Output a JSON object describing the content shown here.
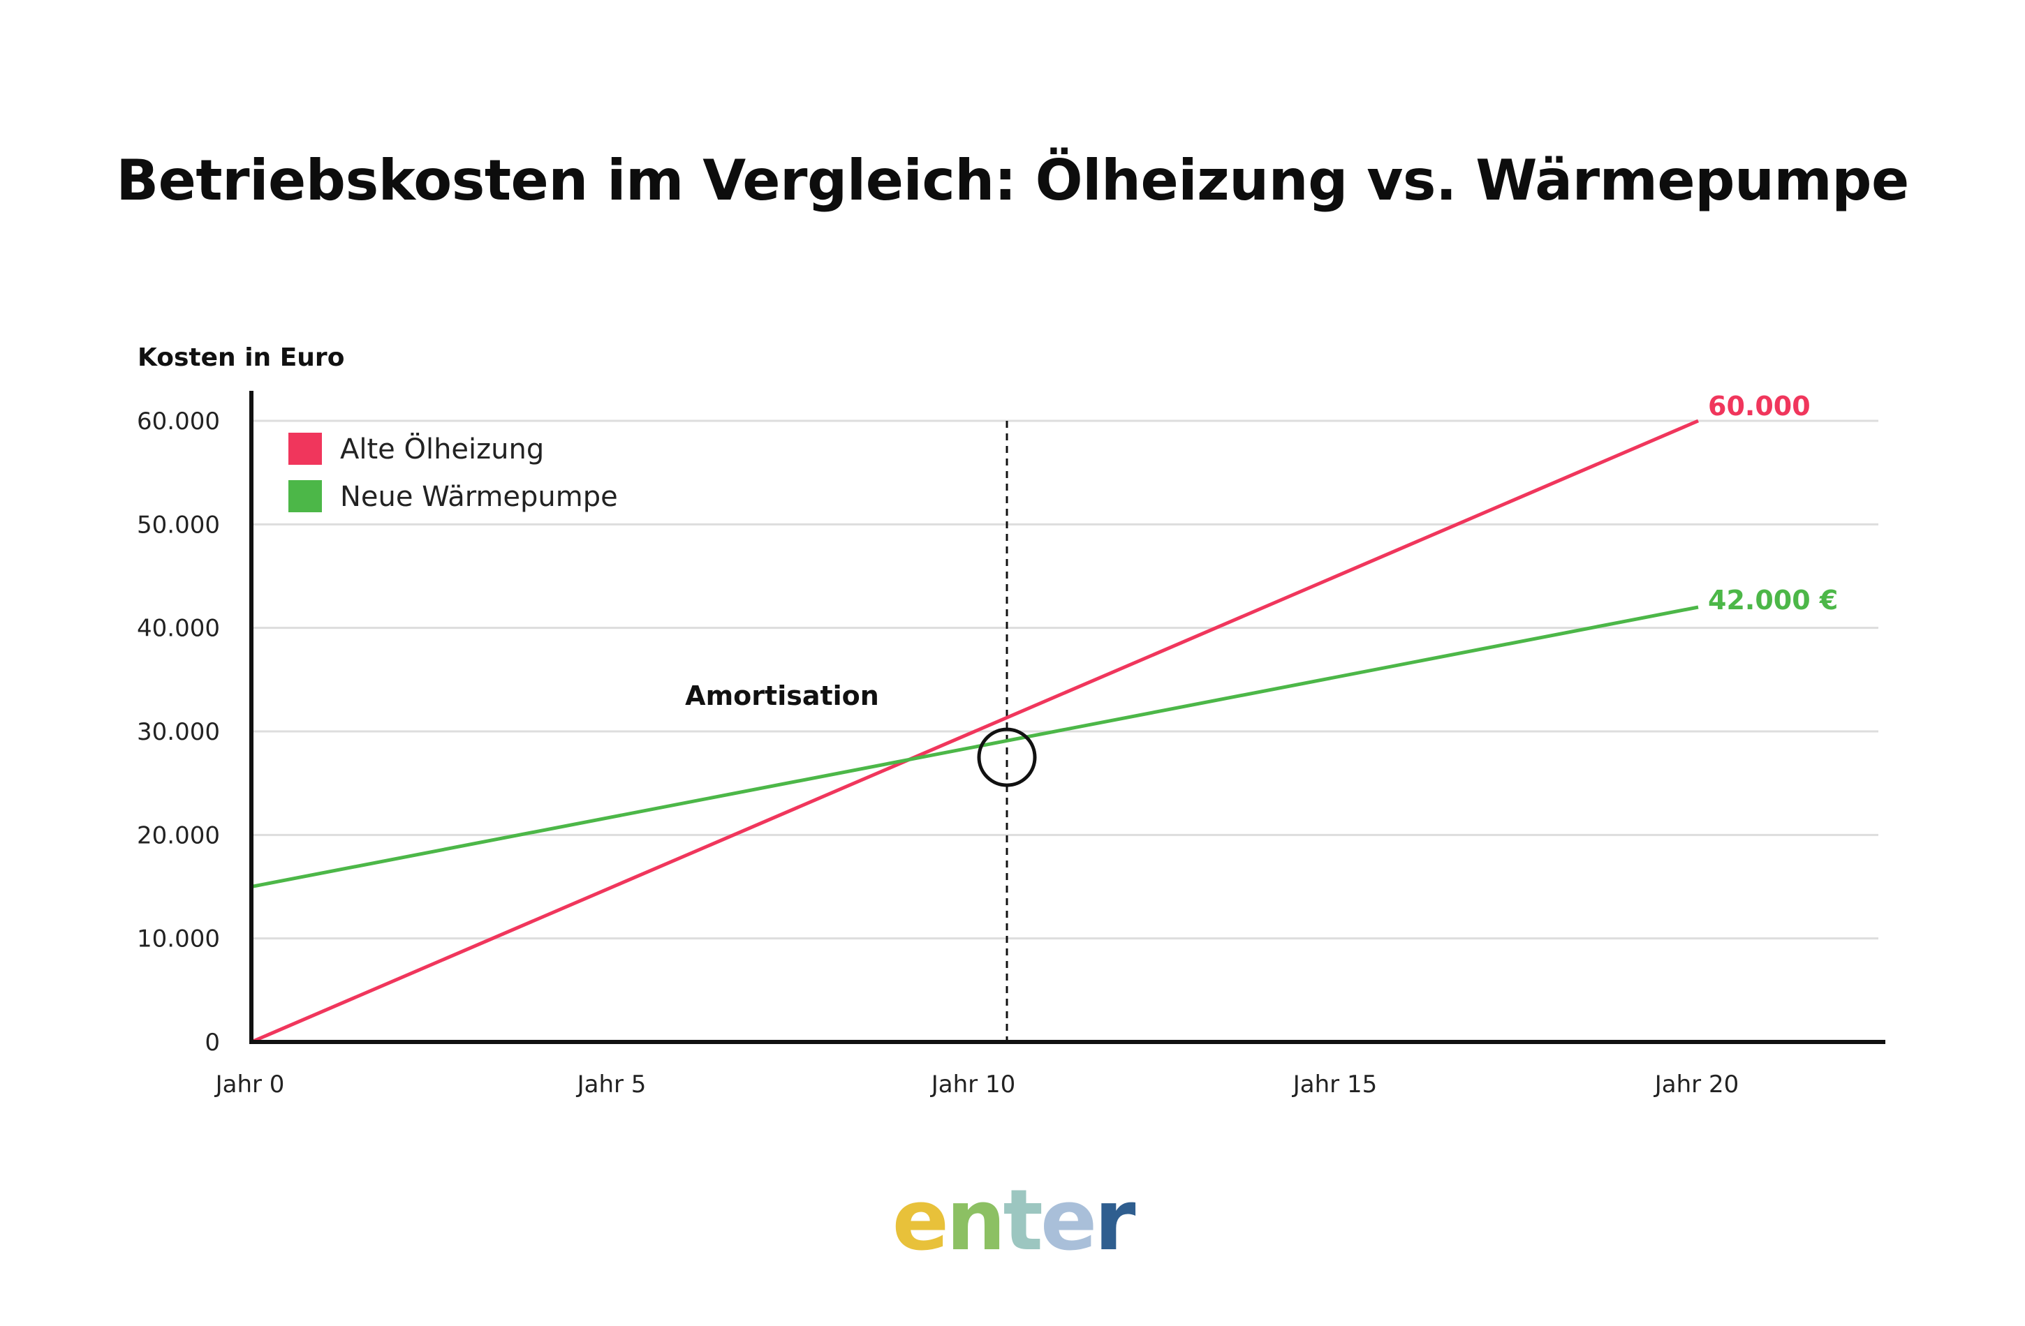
{
  "title": "Betriebskosten im Vergleich: Ölheizung vs. Wärmepumpe",
  "colors": {
    "alt": "#f0365c",
    "neu": "#4cb748",
    "axis": "#111111",
    "grid": "#dddddd"
  },
  "chart_data": {
    "type": "line",
    "ylabel": "Kosten in Euro",
    "xlabel": "",
    "xlim": [
      0,
      22
    ],
    "ylim": [
      0,
      60000
    ],
    "grid": true,
    "legend_position": "top-left",
    "y_ticks": [
      {
        "value": 0,
        "label": "0"
      },
      {
        "value": 10000,
        "label": "10.000"
      },
      {
        "value": 20000,
        "label": "20.000"
      },
      {
        "value": 30000,
        "label": "30.000"
      },
      {
        "value": 40000,
        "label": "40.000"
      },
      {
        "value": 50000,
        "label": "50.000"
      },
      {
        "value": 60000,
        "label": "60.000"
      }
    ],
    "x_ticks": [
      {
        "value": 0,
        "label": "Jahr 0"
      },
      {
        "value": 5,
        "label": "Jahr 5"
      },
      {
        "value": 10,
        "label": "Jahr 10"
      },
      {
        "value": 15,
        "label": "Jahr 15"
      },
      {
        "value": 20,
        "label": "Jahr 20"
      }
    ],
    "series": [
      {
        "name": "Alte Ölheizung",
        "color": "#f0365c",
        "x": [
          0,
          20
        ],
        "y": [
          0,
          60000
        ],
        "end_label": "60.000"
      },
      {
        "name": "Neue Wärmepumpe",
        "color": "#4cb748",
        "x": [
          0,
          20
        ],
        "y": [
          15000,
          42000
        ],
        "end_label": "42.000 €"
      }
    ],
    "annotations": [
      {
        "text": "Amortisation",
        "x": 10,
        "y": 27500
      }
    ]
  },
  "logo": {
    "letters": [
      "e",
      "n",
      "t",
      "e",
      "r"
    ],
    "colors": [
      "#e8c13a",
      "#8cc063",
      "#9cc6c0",
      "#a9bfd9",
      "#2f5e8f"
    ]
  }
}
